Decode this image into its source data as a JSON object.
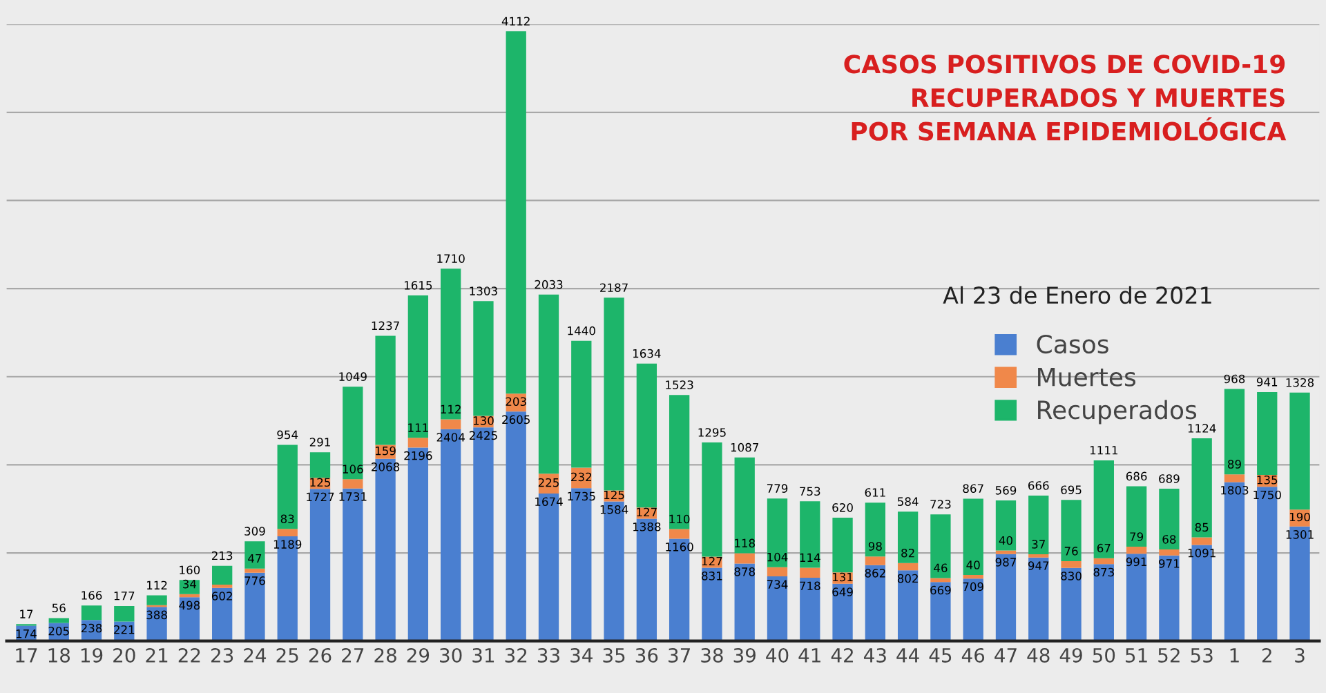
{
  "chart_data": {
    "type": "bar",
    "stacked": true,
    "title": "CASOS POSITIVOS DE COVID-19\nRECUPERADOS Y MUERTES\nPOR SEMANA EPIDEMIOLÓGICA",
    "subtitle": "Al 23 de Enero de 2021",
    "categories": [
      "17",
      "18",
      "19",
      "20",
      "21",
      "22",
      "23",
      "24",
      "25",
      "26",
      "27",
      "28",
      "29",
      "30",
      "31",
      "32",
      "33",
      "34",
      "35",
      "36",
      "37",
      "38",
      "39",
      "40",
      "41",
      "42",
      "43",
      "44",
      "45",
      "46",
      "47",
      "48",
      "49",
      "50",
      "51",
      "52",
      "53",
      "1",
      "2",
      "3"
    ],
    "series": [
      {
        "name": "Casos",
        "color": "#4a7fd0",
        "values": [
          174,
          205,
          238,
          221,
          388,
          498,
          602,
          776,
          1189,
          1727,
          1731,
          2068,
          2196,
          2404,
          2425,
          2605,
          1674,
          1735,
          1584,
          1388,
          1160,
          831,
          878,
          734,
          718,
          649,
          862,
          802,
          669,
          709,
          987,
          947,
          830,
          873,
          991,
          971,
          1091,
          1803,
          1750,
          1301
        ],
        "value_labels": [
          "174",
          "205",
          "238",
          "221",
          "388",
          "498",
          "602",
          "776",
          "1189",
          "1727",
          "1731",
          "2068",
          "2196",
          "2404",
          "2425",
          "2605",
          "1674",
          "1735",
          "1584",
          "1388",
          "1160",
          "831",
          "878",
          "734",
          "718",
          "649",
          "862",
          "802",
          "669",
          "709",
          "987",
          "947",
          "830",
          "873",
          "991",
          "971",
          "1091",
          "1803",
          "1750",
          "1301"
        ]
      },
      {
        "name": "Muertes",
        "color": "#f0884a",
        "values": [
          null,
          null,
          null,
          null,
          18,
          34,
          39,
          47,
          83,
          125,
          106,
          159,
          111,
          112,
          130,
          203,
          225,
          232,
          125,
          127,
          110,
          127,
          118,
          104,
          114,
          131,
          98,
          82,
          46,
          40,
          40,
          37,
          76,
          67,
          79,
          68,
          85,
          89,
          135,
          190
        ],
        "value_labels": [
          null,
          null,
          null,
          null,
          null,
          "34",
          null,
          "47",
          "83",
          "125",
          "106",
          "159",
          "111",
          "112",
          "130",
          "203",
          "225",
          "232",
          "125",
          "127",
          "110",
          "127",
          "118",
          "104",
          "114",
          "131",
          "98",
          "82",
          "46",
          "40",
          "40",
          "37",
          "76",
          "67",
          "79",
          "68",
          "85",
          "89",
          "135",
          "190"
        ]
      },
      {
        "name": "Recuperados",
        "color": "#1db56a",
        "values": [
          17,
          56,
          166,
          177,
          112,
          160,
          213,
          309,
          954,
          291,
          1049,
          1237,
          1615,
          1710,
          1303,
          4112,
          2033,
          1440,
          2187,
          1634,
          1523,
          1295,
          1087,
          779,
          753,
          620,
          611,
          584,
          723,
          867,
          569,
          666,
          695,
          1111,
          686,
          689,
          1124,
          968,
          941,
          1328
        ],
        "value_labels": [
          "17",
          "56",
          "166",
          "177",
          "112",
          "160",
          "213",
          "309",
          "954",
          "291",
          "1049",
          "1237",
          "1615",
          "1710",
          "1303",
          "4112",
          "2033",
          "1440",
          "2187",
          "1634",
          "1523",
          "1295",
          "1087",
          "779",
          "753",
          "620",
          "611",
          "584",
          "723",
          "867",
          "569",
          "666",
          "695",
          "1111",
          "686",
          "689",
          "1124",
          "968",
          "941",
          "1328"
        ]
      }
    ],
    "ylim": [
      0,
      7000
    ],
    "yticks": [
      {
        "value": 0,
        "label": null
      },
      {
        "value": 1000,
        "label": null
      },
      {
        "value": 2000,
        "label": null
      },
      {
        "value": 3000,
        "label": null
      },
      {
        "value": 4000,
        "label": null
      },
      {
        "value": 5000,
        "label": null
      },
      {
        "value": 6000,
        "label": null
      },
      {
        "value": 7000,
        "label": null
      }
    ],
    "tick_labels": "x",
    "grid": "y",
    "legend": "right"
  }
}
